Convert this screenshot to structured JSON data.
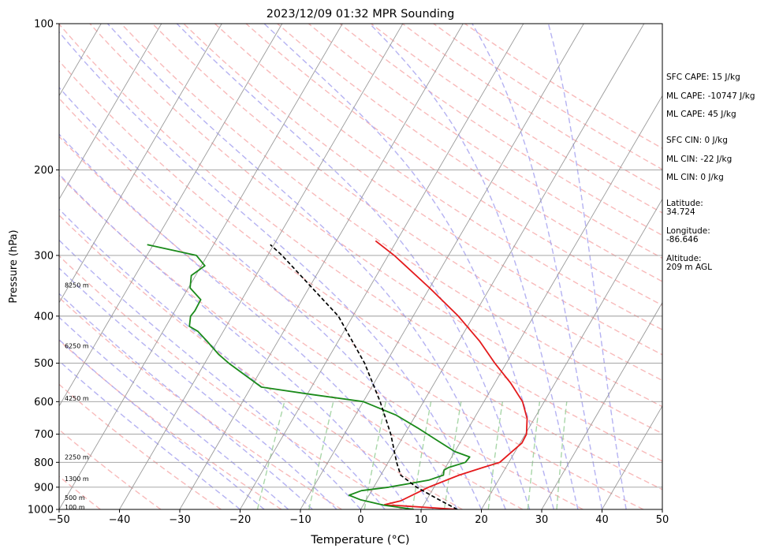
{
  "chart_data": {
    "type": "line",
    "subtype": "skew-t log-p sounding",
    "title": "2023/12/09 01:32 MPR Sounding",
    "xlabel": "Temperature (°C)",
    "ylabel": "Pressure (hPa)",
    "xlim": [
      -50,
      50
    ],
    "ylim": [
      1000,
      100
    ],
    "y_scale": "log",
    "x_ticks": [
      "−50",
      "−40",
      "−30",
      "−20",
      "−10",
      "0",
      "10",
      "20",
      "30",
      "40",
      "50"
    ],
    "x_tick_values": [
      -50,
      -40,
      -30,
      -20,
      -10,
      0,
      10,
      20,
      30,
      40,
      50
    ],
    "y_ticks": [
      "100",
      "200",
      "300",
      "400",
      "500",
      "600",
      "700",
      "800",
      "900",
      "1000"
    ],
    "y_tick_values": [
      100,
      200,
      300,
      400,
      500,
      600,
      700,
      800,
      900,
      1000
    ],
    "grid": true,
    "colors": {
      "temperature": "#e41a1c",
      "dewpoint": "#1a8a1a",
      "parcel": "#000000",
      "isotherm": "#9a9a9a",
      "dry_adiabat": "#f5a3a3",
      "moist_adiabat": "#a8a4f0",
      "mixing_ratio": "#9fd19f"
    },
    "height_labels": [
      {
        "label": "100 m",
        "p": 988
      },
      {
        "label": "500 m",
        "p": 945
      },
      {
        "label": "1300 m",
        "p": 865
      },
      {
        "label": "2250 m",
        "p": 780
      },
      {
        "label": "4250 m",
        "p": 590
      },
      {
        "label": "6250 m",
        "p": 460
      },
      {
        "label": "8250 m",
        "p": 345
      }
    ],
    "series": [
      {
        "key": "temperature",
        "points": [
          {
            "p": 1000,
            "t": 16.0
          },
          {
            "p": 978,
            "t": 3.5
          },
          {
            "p": 960,
            "t": 5.8
          },
          {
            "p": 900,
            "t": 9.1
          },
          {
            "p": 850,
            "t": 13.0
          },
          {
            "p": 820,
            "t": 16.2
          },
          {
            "p": 800,
            "t": 18.5
          },
          {
            "p": 760,
            "t": 19.5
          },
          {
            "p": 730,
            "t": 20.3
          },
          {
            "p": 700,
            "t": 20.2
          },
          {
            "p": 650,
            "t": 18.8
          },
          {
            "p": 600,
            "t": 16.4
          },
          {
            "p": 550,
            "t": 12.7
          },
          {
            "p": 500,
            "t": 8.1
          },
          {
            "p": 450,
            "t": 3.4
          },
          {
            "p": 400,
            "t": -2.5
          },
          {
            "p": 350,
            "t": -10.0
          },
          {
            "p": 300,
            "t": -19.0
          },
          {
            "p": 280,
            "t": -23.5
          }
        ]
      },
      {
        "key": "dewpoint",
        "points": [
          {
            "p": 1000,
            "t": 8.8
          },
          {
            "p": 980,
            "t": 3.4
          },
          {
            "p": 955,
            "t": -1.0
          },
          {
            "p": 935,
            "t": -3.3
          },
          {
            "p": 915,
            "t": -1.7
          },
          {
            "p": 900,
            "t": 2.5
          },
          {
            "p": 870,
            "t": 8.5
          },
          {
            "p": 850,
            "t": 10.4
          },
          {
            "p": 830,
            "t": 10.0
          },
          {
            "p": 820,
            "t": 10.5
          },
          {
            "p": 800,
            "t": 12.8
          },
          {
            "p": 780,
            "t": 13.0
          },
          {
            "p": 760,
            "t": 10.0
          },
          {
            "p": 720,
            "t": 5.9
          },
          {
            "p": 680,
            "t": 1.6
          },
          {
            "p": 640,
            "t": -3.2
          },
          {
            "p": 600,
            "t": -10.0
          },
          {
            "p": 580,
            "t": -19.2
          },
          {
            "p": 560,
            "t": -28.3
          },
          {
            "p": 500,
            "t": -36.0
          },
          {
            "p": 480,
            "t": -38.5
          },
          {
            "p": 450,
            "t": -41.8
          },
          {
            "p": 430,
            "t": -44.2
          },
          {
            "p": 420,
            "t": -46.1
          },
          {
            "p": 400,
            "t": -46.9
          },
          {
            "p": 390,
            "t": -46.7
          },
          {
            "p": 370,
            "t": -46.8
          },
          {
            "p": 350,
            "t": -49.7
          },
          {
            "p": 330,
            "t": -50.7
          },
          {
            "p": 315,
            "t": -49.4
          },
          {
            "p": 300,
            "t": -51.8
          },
          {
            "p": 285,
            "t": -61.0
          }
        ]
      },
      {
        "key": "parcel",
        "points": [
          {
            "p": 1000,
            "t": 16.0
          },
          {
            "p": 950,
            "t": 11.6
          },
          {
            "p": 900,
            "t": 7.1
          },
          {
            "p": 850,
            "t": 3.3
          },
          {
            "p": 800,
            "t": 1.4
          },
          {
            "p": 700,
            "t": -2.3
          },
          {
            "p": 600,
            "t": -7.2
          },
          {
            "p": 500,
            "t": -13.5
          },
          {
            "p": 400,
            "t": -22.4
          },
          {
            "p": 300,
            "t": -37.6
          },
          {
            "p": 285,
            "t": -40.6
          }
        ]
      }
    ]
  },
  "side_info": {
    "sfc_cape": "SFC CAPE: 15 J/kg",
    "ml_cape_1": "ML CAPE: -10747 J/kg",
    "ml_cape_2": "ML CAPE: 45 J/kg",
    "sfc_cin": "SFC CIN: 0 J/kg",
    "ml_cin_1": "ML CIN: -22 J/kg",
    "ml_cin_2": "ML CIN: 0 J/kg",
    "latitude_label": "Latitude:",
    "latitude_value": "34.724",
    "longitude_label": "Longitude:",
    "longitude_value": "-86.646",
    "altitude_label": "Altitude:",
    "altitude_value": "209 m AGL"
  }
}
